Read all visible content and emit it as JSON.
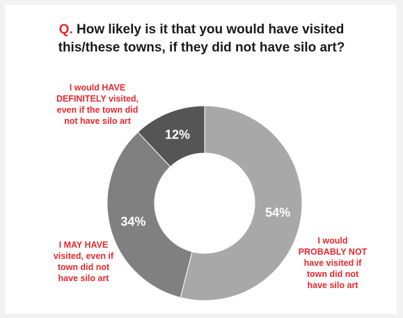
{
  "title": {
    "prefix": "Q.",
    "line1": "How likely is it that you would have visited",
    "line2": "this/these towns, if they did not have silo art?"
  },
  "chart_data": {
    "type": "pie",
    "donut": true,
    "slices": [
      {
        "label_lines": [
          "I would",
          "PROBABLY NOT",
          "have visited if",
          "town did not",
          "have silo art"
        ],
        "value": 54,
        "value_label": "54%",
        "color": "#a8a8a8"
      },
      {
        "label_lines": [
          "I MAY HAVE",
          "visited, even if",
          "town did not",
          "have silo art"
        ],
        "value": 34,
        "value_label": "34%",
        "color": "#808080"
      },
      {
        "label_lines": [
          "I would HAVE",
          "DEFINITELY visited,",
          "even if the town did",
          "not have silo art"
        ],
        "value": 12,
        "value_label": "12%",
        "color": "#555555"
      }
    ]
  }
}
